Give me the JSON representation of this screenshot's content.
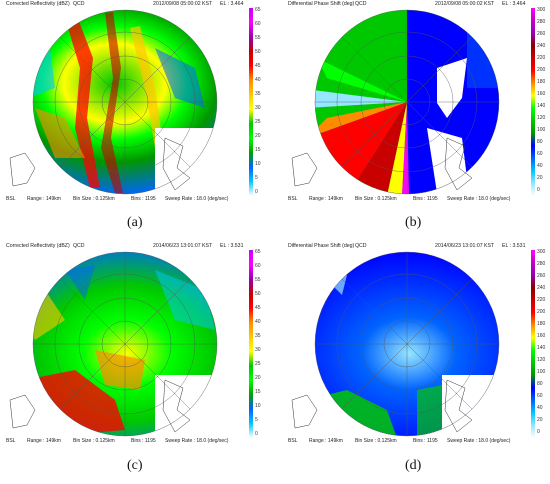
{
  "panels": [
    {
      "id": "a",
      "product": "Corrected Reflectivity (dBZ)",
      "mode": "QCD",
      "datetime": "2012/09/08 05:00:02 KST",
      "elevation": "EL : 3.464",
      "colorbar_labels": [
        "65",
        "60",
        "55",
        "50",
        "45",
        "40",
        "35",
        "30",
        "25",
        "20",
        "15",
        "10",
        "5",
        "0"
      ],
      "caption": "(a)"
    },
    {
      "id": "b",
      "product": "Differential Phase Shift (deg)",
      "mode": "QCD",
      "datetime": "2012/09/08 05:00:02 KST",
      "elevation": "EL : 3.464",
      "colorbar_labels": [
        "300",
        "280",
        "260",
        "240",
        "220",
        "200",
        "180",
        "160",
        "140",
        "120",
        "100",
        "80",
        "60",
        "40",
        "20",
        "0"
      ],
      "caption": "(b)"
    },
    {
      "id": "c",
      "product": "Corrected Reflectivity (dBZ)",
      "mode": "QCD",
      "datetime": "2014/06/23 13:01:07 KST",
      "elevation": "EL : 3.531",
      "colorbar_labels": [
        "65",
        "60",
        "55",
        "50",
        "45",
        "40",
        "35",
        "30",
        "25",
        "20",
        "15",
        "10",
        "5",
        "0"
      ],
      "caption": "(c)"
    },
    {
      "id": "d",
      "product": "Differential Phase Shift (deg)",
      "mode": "QCD",
      "datetime": "2014/06/23 13:01:07 KST",
      "elevation": "EL : 3.531",
      "colorbar_labels": [
        "300",
        "280",
        "260",
        "240",
        "220",
        "200",
        "180",
        "160",
        "140",
        "120",
        "100",
        "80",
        "60",
        "40",
        "20",
        "0"
      ],
      "caption": "(d)"
    }
  ],
  "footer": {
    "site": "BSL",
    "range": "Range : 149km",
    "bin_size": "Bin Size : 0.125km",
    "bins": "Bins : 1195",
    "sweep_rate": "Sweep Rate : 18.0 (deg/sec)"
  },
  "colors": {
    "reflectivity_scale": [
      "#c800ff",
      "#ff00ff",
      "#9600b4",
      "#c80000",
      "#ff0000",
      "#ff8c00",
      "#ffc800",
      "#ffff00",
      "#00c800",
      "#00ff00",
      "#00a000",
      "#0064ff",
      "#00c8ff",
      "#ffffff"
    ],
    "phase_scale": [
      "#ff00ff",
      "#c800c8",
      "#9600b4",
      "#8c0000",
      "#c80000",
      "#ff0000",
      "#ff8c00",
      "#ffff00",
      "#00ff00",
      "#00c800",
      "#009600",
      "#0000ff",
      "#0064ff",
      "#00c8ff",
      "#96e6ff",
      "#ffffff"
    ]
  }
}
